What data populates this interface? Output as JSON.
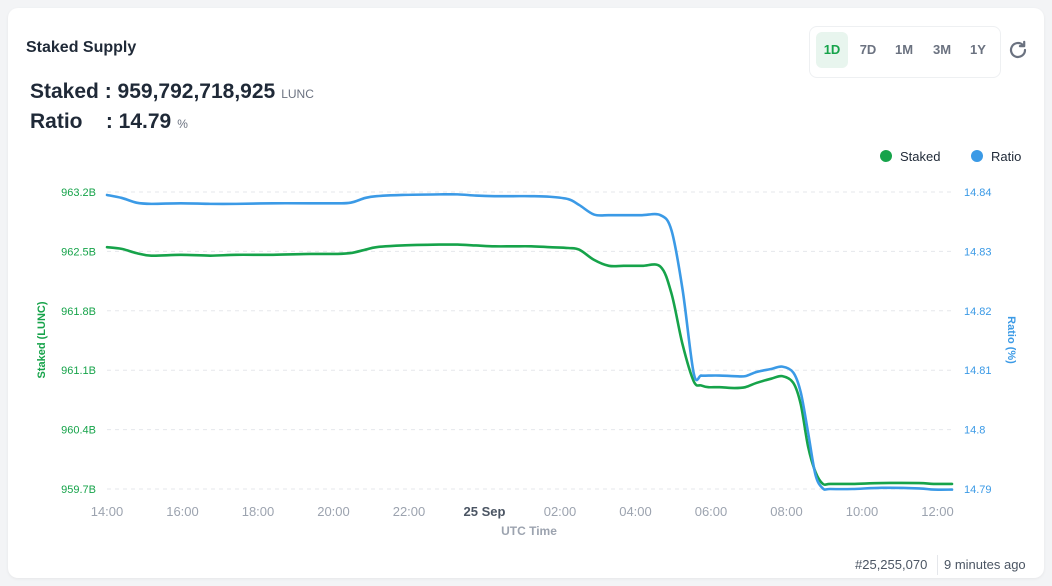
{
  "header": {
    "title": "Staked Supply",
    "ranges": [
      "1D",
      "7D",
      "1M",
      "3M",
      "1Y"
    ],
    "active_range": "1D",
    "refresh_icon": "refresh-icon"
  },
  "stats": {
    "staked_label": "Staked",
    "staked_value": "959,792,718,925",
    "staked_unit": "LUNC",
    "ratio_label": "Ratio",
    "ratio_value": "14.79",
    "ratio_unit": "%"
  },
  "footer": {
    "block": "#25,255,070",
    "updated": "9 minutes ago"
  },
  "colors": {
    "staked": "#16a34a",
    "ratio": "#3b9ae6"
  },
  "chart_data": {
    "type": "line",
    "xlabel": "UTC Time",
    "x_ticks": [
      "14:00",
      "16:00",
      "18:00",
      "20:00",
      "22:00",
      "25 Sep",
      "02:00",
      "04:00",
      "06:00",
      "08:00",
      "10:00",
      "12:00"
    ],
    "x_range": [
      14,
      36.9
    ],
    "legend": {
      "position": "top-right"
    },
    "grid": "horizontal-dashed",
    "y_left": {
      "label": "Staked (LUNC)",
      "ticks": [
        "963.2B",
        "962.5B",
        "961.8B",
        "961.1B",
        "960.4B",
        "959.7B"
      ],
      "range": [
        959.7,
        963.2
      ],
      "unit": "B"
    },
    "y_right": {
      "label": "Ratio (%)",
      "ticks": [
        "14.84",
        "14.83",
        "14.82",
        "14.81",
        "14.8",
        "14.79"
      ],
      "range": [
        14.79,
        14.84
      ]
    },
    "series": [
      {
        "name": "Staked",
        "axis": "left",
        "x": [
          14,
          14.4,
          14.8,
          15.2,
          16,
          16.8,
          17.5,
          18.5,
          19.5,
          20.2,
          20.6,
          21,
          21.3,
          22,
          23,
          23.5,
          24,
          24.5,
          25,
          25.5,
          26,
          26.5,
          26.8,
          27.2,
          27.6,
          28,
          28.5,
          29,
          29.3,
          29.6,
          29.9,
          30.1,
          30.3,
          30.6,
          31,
          31.3,
          31.6,
          32,
          32.3,
          32.6,
          32.8,
          33,
          33.2,
          33.4,
          33.6,
          34.2,
          35,
          36,
          36.4,
          36.9
        ],
        "y": [
          962.55,
          962.53,
          962.48,
          962.45,
          962.46,
          962.45,
          962.46,
          962.46,
          962.47,
          962.47,
          962.48,
          962.52,
          962.55,
          962.57,
          962.58,
          962.58,
          962.57,
          962.56,
          962.56,
          962.56,
          962.55,
          962.54,
          962.52,
          962.4,
          962.33,
          962.33,
          962.33,
          962.32,
          962.0,
          961.4,
          960.97,
          960.92,
          960.9,
          960.9,
          960.89,
          960.9,
          960.95,
          961.0,
          961.03,
          960.95,
          960.7,
          960.2,
          959.9,
          959.76,
          959.76,
          959.76,
          959.77,
          959.77,
          959.76,
          959.76
        ]
      },
      {
        "name": "Ratio",
        "axis": "right",
        "x": [
          14,
          14.4,
          14.8,
          15.2,
          16,
          16.8,
          17.5,
          18.5,
          19.5,
          20.2,
          20.6,
          21,
          21.3,
          22,
          23,
          23.5,
          24,
          24.5,
          25,
          25.5,
          26,
          26.5,
          26.8,
          27.2,
          27.6,
          28,
          28.5,
          29,
          29.3,
          29.6,
          29.9,
          30.1,
          30.3,
          30.6,
          31,
          31.3,
          31.6,
          32,
          32.3,
          32.6,
          32.8,
          33,
          33.2,
          33.4,
          33.6,
          34.2,
          35,
          36,
          36.4,
          36.9
        ],
        "y": [
          14.8395,
          14.839,
          14.8382,
          14.838,
          14.8381,
          14.838,
          14.838,
          14.8381,
          14.8381,
          14.8381,
          14.8382,
          14.839,
          14.8393,
          14.8395,
          14.8396,
          14.8396,
          14.8394,
          14.8393,
          14.8393,
          14.8393,
          14.8392,
          14.8388,
          14.8378,
          14.8362,
          14.8361,
          14.8361,
          14.8361,
          14.8361,
          14.8335,
          14.8235,
          14.8095,
          14.8091,
          14.8091,
          14.8091,
          14.809,
          14.809,
          14.8097,
          14.8102,
          14.8106,
          14.8096,
          14.8063,
          14.7995,
          14.7924,
          14.7901,
          14.79,
          14.79,
          14.7902,
          14.7901,
          14.7899,
          14.7899
        ]
      }
    ]
  }
}
